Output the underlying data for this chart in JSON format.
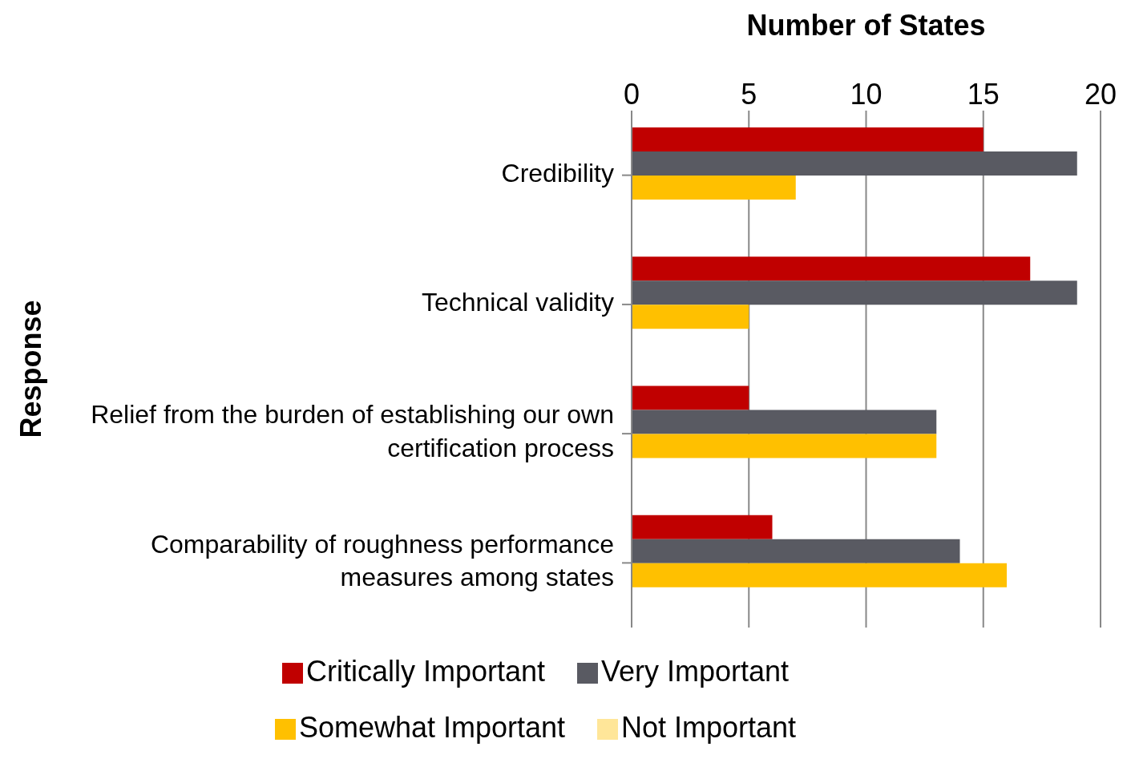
{
  "chart_data": {
    "type": "bar",
    "orientation": "horizontal",
    "xlabel": "Number of States",
    "ylabel": "Response",
    "categories": [
      "Credibility",
      "Technical validity",
      "Relief from the burden of establishing our own certification process",
      "Comparability of roughness performance measures among states"
    ],
    "series": [
      {
        "name": "Critically Important",
        "color": "#c00000",
        "values": [
          15,
          17,
          5,
          6
        ]
      },
      {
        "name": "Very Important",
        "color": "#595a62",
        "values": [
          19,
          19,
          13,
          14
        ]
      },
      {
        "name": "Somewhat Important",
        "color": "#ffc000",
        "values": [
          7,
          5,
          13,
          16
        ]
      },
      {
        "name": "Not Important",
        "color": "#ffe699",
        "values": [
          0,
          0,
          0,
          0
        ]
      }
    ],
    "xlim": [
      0,
      20
    ],
    "xticks": [
      0,
      5,
      10,
      15,
      20
    ],
    "grid": "x",
    "legend": "bottom"
  }
}
